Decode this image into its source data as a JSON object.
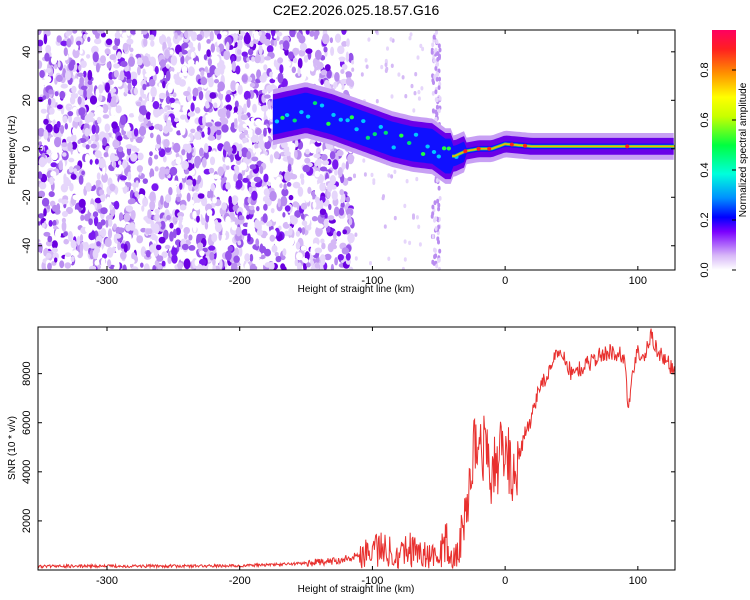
{
  "title": "C2E2.2026.025.18.57.G16",
  "colors": {
    "snr_line": "#e8302e",
    "colorscale": [
      "#ffffff",
      "#d8b8f8",
      "#7a00ff",
      "#0000ff",
      "#00c8ff",
      "#00ff60",
      "#ffff00",
      "#ff8000",
      "#ff0050"
    ]
  },
  "chart_data": [
    {
      "type": "heatmap",
      "name": "spectrogram",
      "xlabel": "Height of straight line (km)",
      "ylabel": "Frequency (Hz)",
      "xlim": [
        -352,
        128
      ],
      "ylim": [
        -50,
        49
      ],
      "xticks": [
        -300,
        -200,
        -100,
        0,
        100
      ],
      "xtick_labels": [
        "-300",
        "-200",
        "-100",
        "0",
        "100"
      ],
      "yticks": [
        -40,
        -20,
        0,
        20,
        40
      ],
      "ytick_labels": [
        "-40",
        "-20",
        "0",
        "20",
        "40"
      ],
      "features": {
        "noise_region_x": [
          -352,
          -115
        ],
        "gap_region_x": [
          -115,
          -60
        ],
        "narrow_noise_column_x": -52,
        "signal_start_x": -175
      },
      "ridge": {
        "x": [
          -175,
          -150,
          -130,
          -115,
          -100,
          -85,
          -70,
          -55,
          -45,
          -38,
          -30,
          -20,
          -10,
          0,
          20,
          40,
          80,
          128
        ],
        "freq": [
          13,
          16,
          13,
          10,
          7,
          4,
          2,
          1,
          -3,
          -3,
          -1,
          0,
          0,
          2,
          1,
          1,
          1,
          1
        ]
      },
      "colorbar": {
        "label": "Normalized spectral amplitude",
        "range": [
          0,
          0.96
        ],
        "ticks": [
          0.0,
          0.2,
          0.4,
          0.6,
          0.8
        ],
        "tick_labels": [
          "0.0",
          "0.2",
          "0.4",
          "0.6",
          "0.8"
        ]
      }
    },
    {
      "type": "line",
      "name": "snr",
      "xlabel": "Height of straight line (km)",
      "ylabel": "SNR (10 * v/v)",
      "xlim": [
        -352,
        128
      ],
      "ylim": [
        0,
        9900
      ],
      "xticks": [
        -300,
        -200,
        -100,
        0,
        100
      ],
      "xtick_labels": [
        "-300",
        "-200",
        "-100",
        "0",
        "100"
      ],
      "yticks": [
        2000,
        4000,
        6000,
        8000
      ],
      "ytick_labels": [
        "2000",
        "4000",
        "6000",
        "8000"
      ],
      "series": [
        {
          "name": "SNR",
          "x": [
            -352,
            -300,
            -250,
            -200,
            -160,
            -130,
            -110,
            -100,
            -90,
            -80,
            -70,
            -60,
            -50,
            -45,
            -40,
            -35,
            -30,
            -25,
            -20,
            -15,
            -10,
            -5,
            0,
            5,
            10,
            15,
            20,
            25,
            30,
            35,
            40,
            45,
            50,
            60,
            70,
            80,
            90,
            93,
            96,
            100,
            105,
            110,
            115,
            120,
            125,
            128
          ],
          "y": [
            150,
            160,
            160,
            170,
            250,
            350,
            600,
            900,
            800,
            700,
            900,
            600,
            500,
            1200,
            400,
            700,
            2200,
            4500,
            5500,
            4800,
            4000,
            4500,
            5000,
            4000,
            4500,
            5500,
            6200,
            7400,
            7800,
            8200,
            9000,
            8600,
            8000,
            8300,
            8700,
            8900,
            8700,
            6400,
            8200,
            8900,
            8600,
            9600,
            8900,
            8600,
            8300,
            8000
          ]
        }
      ]
    }
  ]
}
